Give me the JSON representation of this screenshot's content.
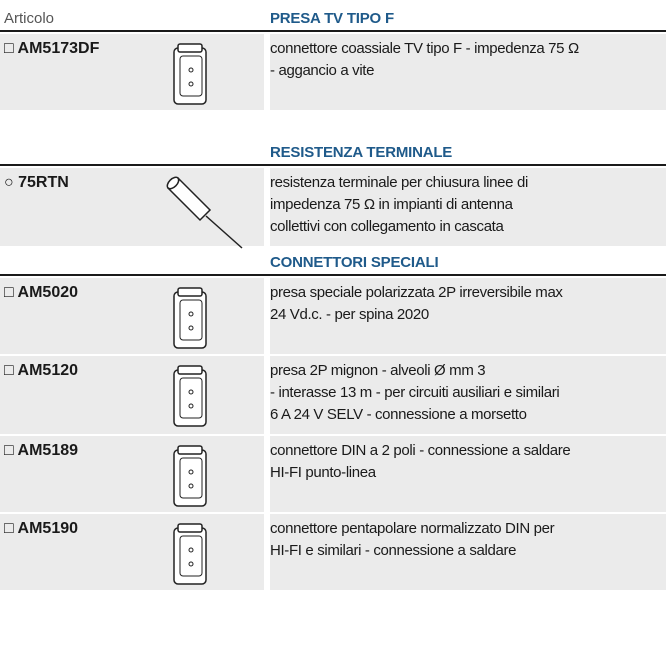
{
  "header": {
    "article_label": "Articolo"
  },
  "sections": [
    {
      "title": "PRESA TV TIPO F",
      "rows": [
        {
          "marker": "□",
          "code": "AM5173DF",
          "description": [
            "connettore coassiale TV tipo F - impedenza 75 Ω",
            "- aggancio a vite"
          ]
        }
      ]
    },
    {
      "title": "RESISTENZA TERMINALE",
      "rows": [
        {
          "marker": "○",
          "code": "75RTN",
          "description": [
            "resistenza terminale per chiusura linee di",
            "impedenza 75 Ω in impianti di antenna",
            "collettivi con collegamento in cascata"
          ]
        }
      ]
    },
    {
      "title": "CONNETTORI SPECIALI",
      "rows": [
        {
          "marker": "□",
          "code": "AM5020",
          "description": [
            "presa speciale polarizzata 2P irreversibile max",
            "24 Vd.c. - per spina 2020"
          ]
        },
        {
          "marker": "□",
          "code": "AM5120",
          "description": [
            "presa 2P mignon - alveoli Ø mm 3",
            "- interasse 13 m - per circuiti ausiliari e similari",
            "6 A 24 V SELV - connessione a morsetto"
          ]
        },
        {
          "marker": "□",
          "code": "AM5189",
          "description": [
            "connettore DIN a 2 poli - connessione a saldare",
            "HI-FI punto-linea"
          ]
        },
        {
          "marker": "□",
          "code": "AM5190",
          "description": [
            "connettore pentapolare normalizzato DIN per",
            "HI-FI e similari - connessione a saldare"
          ]
        }
      ]
    }
  ]
}
